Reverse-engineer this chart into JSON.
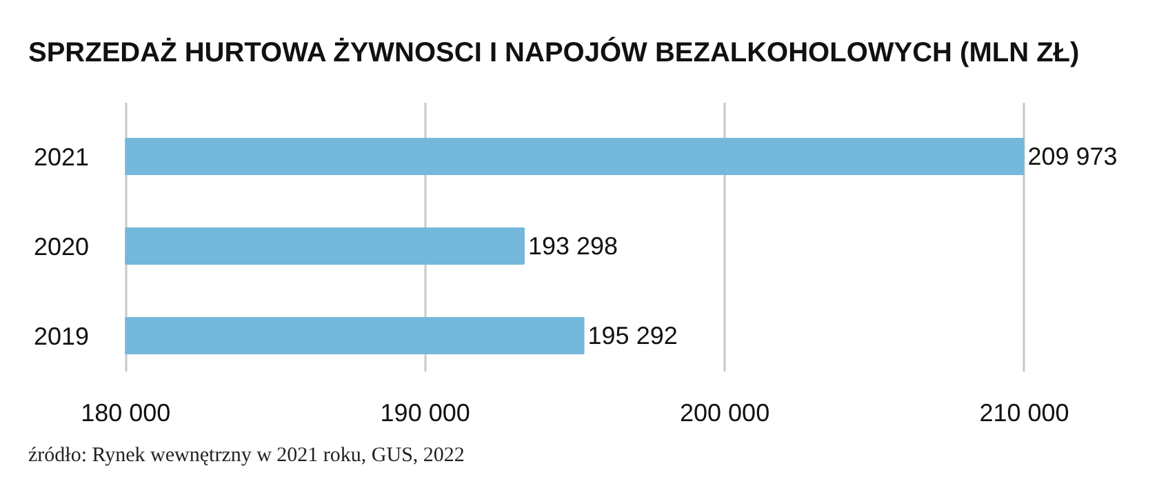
{
  "chart_data": {
    "type": "bar",
    "orientation": "horizontal",
    "title": "SPRZEDAŻ HURTOWA ŻYWNOSCI I NAPOJÓW BEZALKOHOLOWYCH (MLN ZŁ)",
    "categories": [
      "2021",
      "2020",
      "2019"
    ],
    "values": [
      209973,
      193298,
      195292
    ],
    "value_labels": [
      "209 973",
      "193 298",
      "195 292"
    ],
    "color": "#74b8db",
    "xlim": [
      180000,
      210000
    ],
    "xticks": [
      {
        "value": 180000,
        "label": "180 000"
      },
      {
        "value": 190000,
        "label": "190 000"
      },
      {
        "value": 200000,
        "label": "200 000"
      },
      {
        "value": 210000,
        "label": "210 000"
      }
    ],
    "grid": "x",
    "legend": false,
    "annotations": [
      "źródło: Rynek wewnętrzny w 2021 roku, GUS, 2022"
    ]
  }
}
